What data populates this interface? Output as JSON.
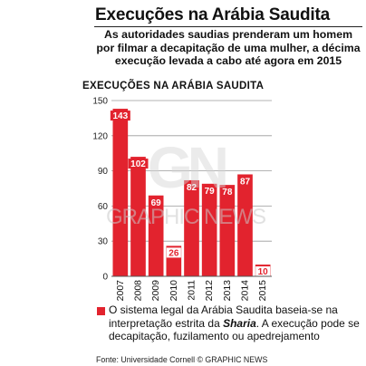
{
  "header": {
    "title": "Execuções na Arábia Saudita",
    "subtitle": "As autoridades saudias prenderam um homem por filmar a decapitação de uma mulher, a décima execução levada a cabo até agora em 2015"
  },
  "chart_data": {
    "type": "bar",
    "title": "Execuções na Arábia Saudita",
    "categories": [
      "2007",
      "2008",
      "2009",
      "2010",
      "2011",
      "2012",
      "2013",
      "2014",
      "2015"
    ],
    "values": [
      143,
      102,
      69,
      26,
      82,
      79,
      78,
      87,
      10
    ],
    "ylim": [
      0,
      150
    ],
    "yticks": [
      0,
      30,
      60,
      90,
      120,
      150
    ],
    "xlabel": "",
    "ylabel": "",
    "grid": true,
    "colors": {
      "bar": "#e2232e",
      "label_box": "#ffffff",
      "grid": "#9a9a9a"
    }
  },
  "note": {
    "prefix": "O sistema legal da Arábia Saudita baseia-se na interpretação estrita da ",
    "em": "Sharia",
    "suffix": ". A execução pode se decapitação, fuzilamento ou apedrejamento"
  },
  "source": "Fonte: Universidade Cornell © GRAPHIC NEWS",
  "watermark": {
    "logo": "GN",
    "text": "GRAPHIC NEWS"
  }
}
